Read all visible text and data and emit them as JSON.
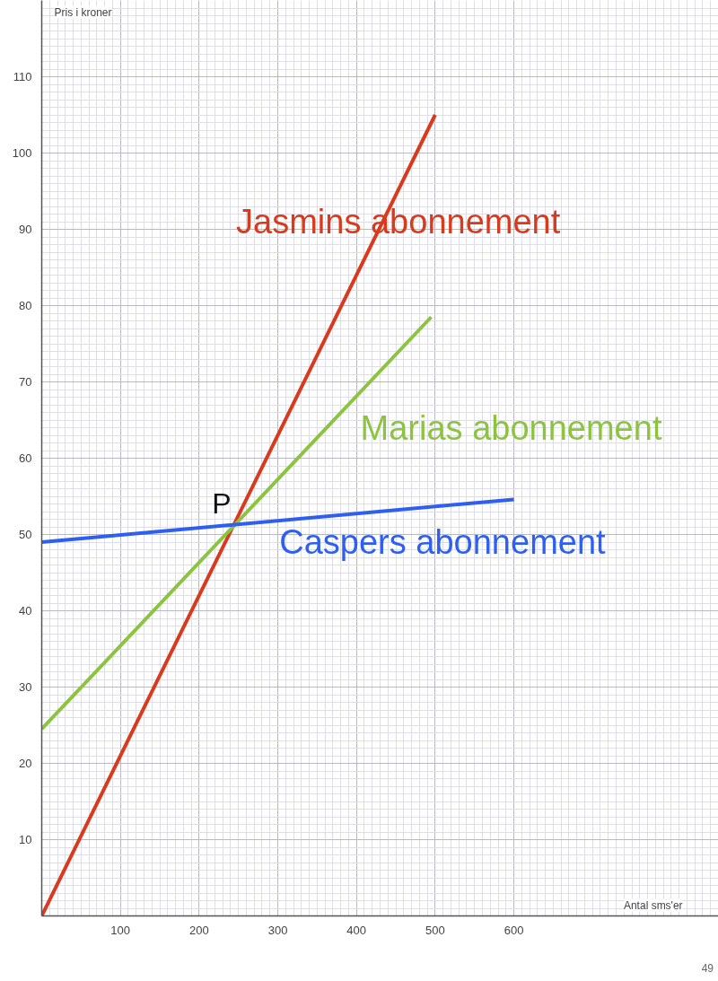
{
  "chart_data": {
    "type": "line",
    "xlabel": "Antal sms'er",
    "ylabel": "Pris i kroner",
    "series": [
      {
        "name": "Jasmins abonnement",
        "color": "#d93a1e",
        "x": [
          0,
          500
        ],
        "values": [
          0,
          105
        ]
      },
      {
        "name": "Marias abonnement",
        "color": "#8cc43f",
        "x": [
          0,
          495
        ],
        "values": [
          24.5,
          78.5
        ]
      },
      {
        "name": "Caspers abonnement",
        "color": "#2f5ff0",
        "x": [
          0,
          600
        ],
        "values": [
          49,
          54.6
        ]
      }
    ],
    "xlim": [
      0,
      860
    ],
    "ylim": [
      0,
      120
    ],
    "xticks": [
      100,
      200,
      300,
      400,
      500,
      600
    ],
    "yticks": [
      10,
      20,
      30,
      40,
      50,
      60,
      70,
      80,
      90,
      100,
      110
    ],
    "grid": true,
    "marker": "none",
    "line_style": "solid",
    "annotations": [
      {
        "text": "P",
        "x": 250,
        "y": 51.5
      },
      "49"
    ]
  }
}
